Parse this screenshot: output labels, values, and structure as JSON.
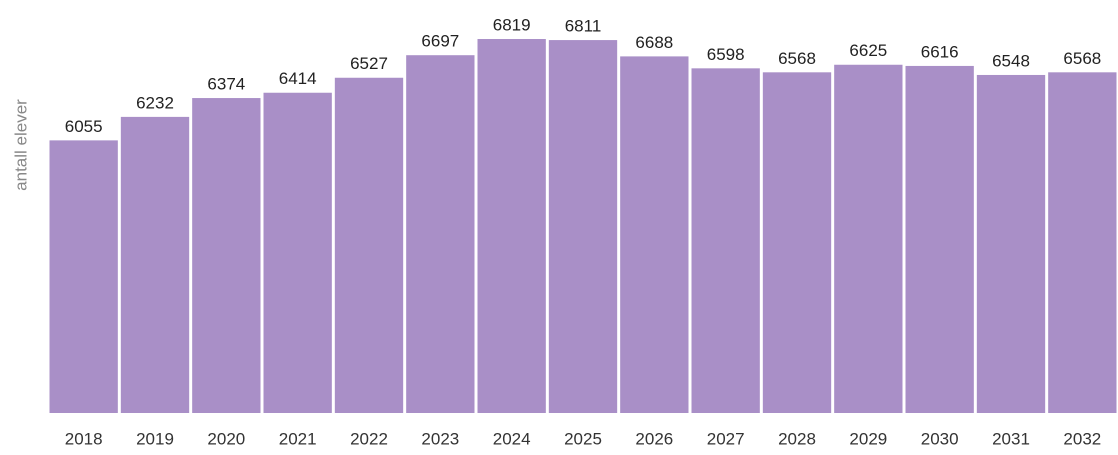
{
  "chart_data": {
    "type": "bar",
    "y_label": "antall elever",
    "categories": [
      "2018",
      "2019",
      "2020",
      "2021",
      "2022",
      "2023",
      "2024",
      "2025",
      "2026",
      "2027",
      "2028",
      "2029",
      "2030",
      "2031",
      "2032"
    ],
    "values": [
      6055,
      6232,
      6374,
      6414,
      6527,
      6697,
      6819,
      6811,
      6688,
      6598,
      6568,
      6625,
      6616,
      6548,
      6568
    ],
    "color": "#a98fc7",
    "ylim": [
      4000,
      7000
    ]
  }
}
